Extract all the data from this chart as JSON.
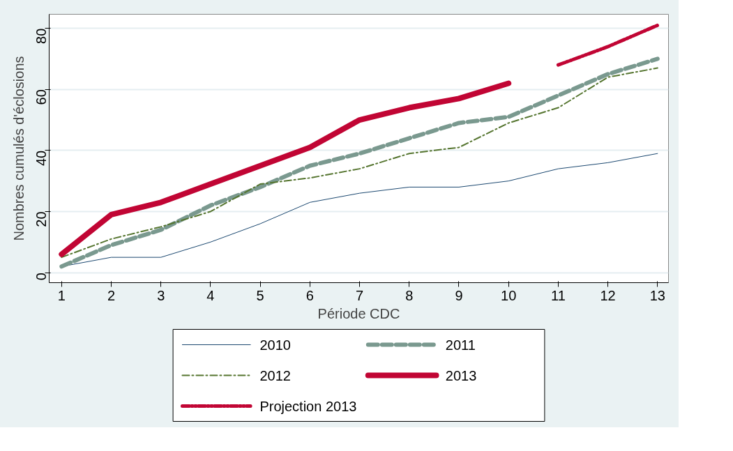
{
  "chart_data": {
    "type": "line",
    "xlabel": "Période CDC",
    "ylabel": "Nombres cumulés d'éclosions",
    "x": [
      1,
      2,
      3,
      4,
      5,
      6,
      7,
      8,
      9,
      10,
      11,
      12,
      13
    ],
    "xlim": [
      0.75,
      13.22
    ],
    "xticks": [
      1,
      2,
      3,
      4,
      5,
      6,
      7,
      8,
      9,
      10,
      11,
      12,
      13
    ],
    "ylim": [
      -3.3,
      84.6
    ],
    "yticks": [
      0,
      20,
      40,
      60,
      80
    ],
    "grid": "y",
    "legend": "bottom",
    "series": [
      {
        "name": "2010",
        "color": "#1a476f",
        "line_style": "solid",
        "values": [
          2,
          5,
          5,
          10,
          16,
          23,
          26,
          28,
          28,
          30,
          34,
          36,
          39
        ]
      },
      {
        "name": "2011",
        "color": "#7a998f",
        "line_style": "dashed",
        "values": [
          2,
          9,
          14,
          22,
          28,
          35,
          39,
          44,
          49,
          51,
          58,
          65,
          70
        ]
      },
      {
        "name": "2012",
        "color": "#55752f",
        "line_style": "dashdot",
        "values": [
          5,
          11,
          15,
          20,
          29,
          31,
          34,
          39,
          41,
          49,
          54,
          64,
          67
        ]
      },
      {
        "name": "2013",
        "color": "#c10534",
        "line_style": "solid",
        "values": [
          6,
          19,
          23,
          29,
          35,
          41,
          50,
          54,
          57,
          62,
          null,
          null,
          null
        ]
      },
      {
        "name": "Projection 2013",
        "color": "#c10534",
        "line_style": "dashdotdot",
        "x": [
          11,
          12,
          13
        ],
        "values": [
          68,
          74,
          81
        ]
      }
    ]
  }
}
